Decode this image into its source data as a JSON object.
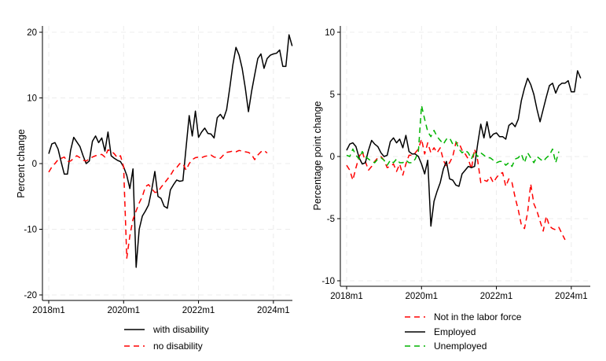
{
  "chart_data": [
    {
      "type": "line",
      "title": "",
      "xlabel": "",
      "ylabel": "Percent change",
      "ylim": [
        -21,
        21
      ],
      "yticks": [
        -20,
        -10,
        0,
        10,
        20
      ],
      "ytick_labels": [
        "-20",
        "-10",
        "0",
        "10",
        "20"
      ],
      "xticks": [
        "2018m1",
        "2020m1",
        "2022m1",
        "2024m1"
      ],
      "x_start": "2018m1",
      "x_unit": "month",
      "grid": true,
      "legend_position": "bottom",
      "series": [
        {
          "name": "with disability",
          "color": "#000000",
          "style": "solid",
          "values": [
            1.5,
            3.0,
            3.2,
            2.2,
            0.2,
            -1.6,
            -1.6,
            2.0,
            4.0,
            3.3,
            2.6,
            1.2,
            0.0,
            0.4,
            3.4,
            4.2,
            3.2,
            3.9,
            1.9,
            4.8,
            1.2,
            0.8,
            0.5,
            0.3,
            -0.5,
            -1.8,
            -3.8,
            -0.8,
            -15.8,
            -10.0,
            -8.0,
            -7.2,
            -6.3,
            -4.0,
            -1.2,
            -5.0,
            -5.3,
            -6.5,
            -6.8,
            -4.0,
            -3.2,
            -2.5,
            -2.7,
            -2.6,
            2.4,
            7.3,
            4.2,
            8.0,
            4.0,
            4.8,
            5.4,
            4.6,
            4.5,
            3.9,
            7.0,
            7.5,
            6.8,
            8.2,
            11.5,
            15.0,
            17.7,
            16.5,
            14.5,
            11.5,
            7.9,
            11.0,
            13.5,
            16.0,
            16.7,
            14.5,
            16.0,
            16.5,
            16.7,
            16.8,
            17.3,
            14.8,
            14.8,
            19.6,
            17.9
          ]
        },
        {
          "name": "no disability",
          "color": "#ff0000",
          "style": "dashed",
          "values": [
            -1.3,
            -0.5,
            0.0,
            0.6,
            0.8,
            1.0,
            0.3,
            0.4,
            0.8,
            1.2,
            0.9,
            0.5,
            0.4,
            0.7,
            1.0,
            1.2,
            1.3,
            1.4,
            1.0,
            2.1,
            1.9,
            1.5,
            0.9,
            1.2,
            -0.5,
            -14.4,
            -11.0,
            -8.5,
            -7.2,
            -6.0,
            -5.0,
            -3.5,
            -3.2,
            -3.8,
            -4.4,
            -4.3,
            -3.6,
            -3.0,
            -2.4,
            -1.8,
            -1.0,
            -0.6,
            0.0,
            0.0,
            -1.0,
            0.0,
            0.6,
            0.9,
            1.0,
            0.9,
            1.1,
            1.2,
            1.3,
            1.0,
            0.9,
            0.8,
            1.3,
            1.7,
            1.8,
            1.9,
            1.8,
            2.0,
            1.9,
            1.8,
            1.7,
            1.4,
            0.6,
            1.3,
            1.8,
            2.0,
            1.6
          ]
        }
      ]
    },
    {
      "type": "line",
      "title": "",
      "xlabel": "",
      "ylabel": "Percentage point change",
      "ylim": [
        -10.5,
        10.3
      ],
      "yticks": [
        -10,
        -5,
        0,
        5,
        10
      ],
      "ytick_labels": [
        "-10",
        "-5",
        "0",
        "5",
        "10"
      ],
      "xticks": [
        "2018m1",
        "2020m1",
        "2022m1",
        "2024m1"
      ],
      "x_start": "2018m1",
      "x_unit": "month",
      "grid": true,
      "legend_position": "bottom",
      "series": [
        {
          "name": "Not in the labor force",
          "color": "#ff0000",
          "style": "dashed",
          "values": [
            -0.7,
            -1.1,
            -1.9,
            -0.9,
            0.0,
            0.4,
            -0.4,
            -1.1,
            -0.8,
            -0.4,
            -0.1,
            0.0,
            -0.3,
            -0.9,
            -0.8,
            -0.6,
            -1.2,
            -0.6,
            -1.5,
            -0.6,
            0.1,
            0.1,
            0.3,
            0.6,
            1.4,
            0.2,
            1.1,
            0.3,
            0.7,
            0.3,
            0.7,
            -0.3,
            -0.8,
            -0.5,
            0.0,
            1.1,
            1.1,
            0.5,
            0.2,
            -0.2,
            -1.0,
            0.6,
            -0.3,
            -2.1,
            -1.9,
            -2.0,
            -1.6,
            -2.1,
            -1.7,
            -1.4,
            -1.3,
            -2.4,
            -1.8,
            -2.1,
            -3.3,
            -4.3,
            -5.5,
            -5.8,
            -4.5,
            -2.2,
            -3.8,
            -4.4,
            -5.2,
            -6.0,
            -4.8,
            -5.6,
            -5.8,
            -5.9,
            -5.7,
            -6.2,
            -6.7
          ]
        },
        {
          "name": "Employed",
          "color": "#000000",
          "style": "solid",
          "values": [
            0.5,
            1.0,
            1.1,
            0.8,
            -0.1,
            -0.6,
            -0.5,
            0.5,
            1.3,
            1.0,
            0.8,
            0.3,
            0.0,
            0.1,
            1.2,
            1.5,
            1.1,
            1.4,
            0.7,
            1.7,
            0.4,
            0.2,
            0.2,
            0.0,
            -0.6,
            -1.4,
            -0.3,
            -5.6,
            -3.6,
            -2.8,
            -2.1,
            -1.0,
            -0.4,
            -1.8,
            -1.9,
            -2.3,
            -2.4,
            -1.4,
            -1.1,
            -0.8,
            -0.9,
            -0.8,
            1.0,
            2.6,
            1.5,
            2.8,
            1.5,
            1.8,
            1.9,
            1.6,
            1.6,
            1.4,
            2.5,
            2.7,
            2.4,
            3.0,
            4.5,
            5.5,
            6.3,
            5.8,
            5.0,
            3.8,
            2.8,
            3.8,
            4.8,
            5.7,
            5.9,
            5.1,
            5.7,
            5.9,
            5.9,
            6.1,
            5.2,
            5.2,
            6.9,
            6.3
          ]
        },
        {
          "name": "Unemployed",
          "color": "#00b400",
          "style": "dashed",
          "values": [
            0.1,
            0.0,
            0.6,
            0.1,
            -0.2,
            0.4,
            0.0,
            -0.2,
            -0.4,
            -0.5,
            -0.2,
            -0.1,
            -0.3,
            -0.7,
            -0.3,
            -0.5,
            -0.2,
            -0.5,
            -0.5,
            -0.3,
            -0.5,
            -0.5,
            -0.2,
            0.4,
            4.1,
            3.0,
            2.0,
            1.6,
            2.1,
            1.6,
            1.3,
            1.0,
            1.4,
            1.5,
            1.0,
            1.2,
            0.6,
            0.3,
            0.5,
            0.3,
            -0.2,
            0.4,
            0.0,
            0.3,
            0.1,
            -0.1,
            -0.1,
            -0.3,
            -0.5,
            -0.4,
            -0.4,
            -0.7,
            -0.5,
            -0.8,
            -0.2,
            -0.1,
            0.2,
            -0.5,
            0.3,
            -0.1,
            -0.5,
            0.0,
            -0.2,
            -0.4,
            -0.1,
            0.1,
            0.6,
            -0.5,
            0.4
          ]
        }
      ]
    }
  ]
}
